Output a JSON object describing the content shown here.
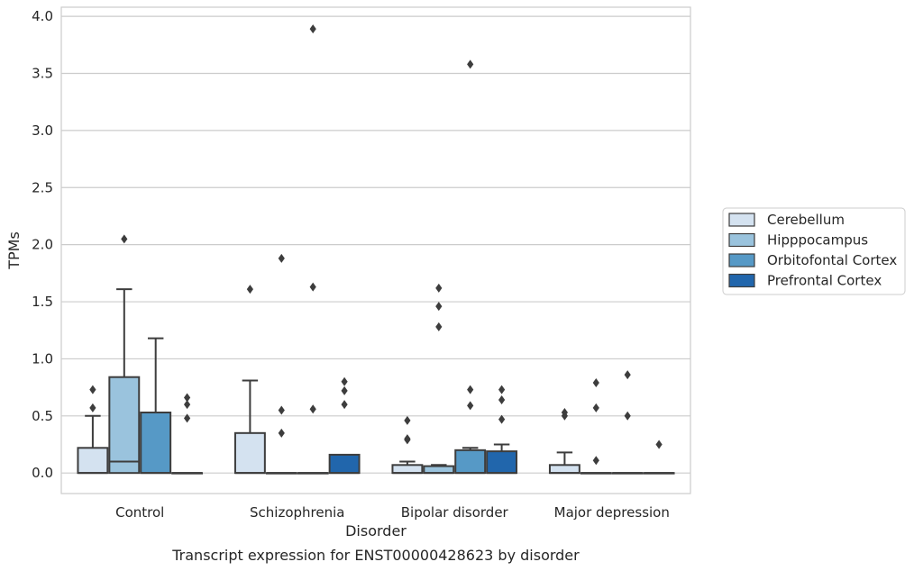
{
  "chart_data": {
    "type": "box",
    "title": "",
    "caption": "Transcript expression for ENST00000428623 by disorder",
    "xlabel": "Disorder",
    "ylabel": "TPMs",
    "ylim": [
      -0.18,
      4.08
    ],
    "yticks": [
      "0.0",
      "0.5",
      "1.0",
      "1.5",
      "2.0",
      "2.5",
      "3.0",
      "3.5",
      "4.0"
    ],
    "grid": "horizontal",
    "legend_position": "right",
    "categories": [
      "Control",
      "Schizophrenia",
      "Bipolar disorder",
      "Major depression"
    ],
    "series": [
      {
        "name": "Cerebellum",
        "color": "#d4e2f0",
        "boxes": [
          {
            "q1": 0.0,
            "median": 0.0,
            "q3": 0.22,
            "whisker_low": 0.0,
            "whisker_high": 0.5,
            "outliers": [
              0.57,
              0.73
            ]
          },
          {
            "q1": 0.0,
            "median": 0.0,
            "q3": 0.35,
            "whisker_low": 0.0,
            "whisker_high": 0.81,
            "outliers": [
              1.61
            ]
          },
          {
            "q1": 0.0,
            "median": 0.0,
            "q3": 0.07,
            "whisker_low": 0.0,
            "whisker_high": 0.1,
            "outliers": [
              0.29,
              0.3,
              0.46
            ]
          },
          {
            "q1": 0.0,
            "median": 0.0,
            "q3": 0.07,
            "whisker_low": 0.0,
            "whisker_high": 0.18,
            "outliers": [
              0.5,
              0.53
            ]
          }
        ]
      },
      {
        "name": "Hipppocampus",
        "color": "#9ac3dd",
        "boxes": [
          {
            "q1": 0.0,
            "median": 0.1,
            "q3": 0.84,
            "whisker_low": 0.0,
            "whisker_high": 1.61,
            "outliers": [
              2.05
            ]
          },
          {
            "q1": 0.0,
            "median": 0.0,
            "q3": 0.0,
            "whisker_low": 0.0,
            "whisker_high": 0.0,
            "outliers": [
              0.35,
              0.55,
              1.88
            ]
          },
          {
            "q1": 0.0,
            "median": 0.0,
            "q3": 0.06,
            "whisker_low": 0.0,
            "whisker_high": 0.07,
            "outliers": [
              1.28,
              1.46,
              1.62
            ]
          },
          {
            "q1": 0.0,
            "median": 0.0,
            "q3": 0.0,
            "whisker_low": 0.0,
            "whisker_high": 0.0,
            "outliers": [
              0.11,
              0.57,
              0.79
            ]
          }
        ]
      },
      {
        "name": "Orbitofontal Cortex",
        "color": "#5699c6",
        "boxes": [
          {
            "q1": 0.0,
            "median": 0.0,
            "q3": 0.53,
            "whisker_low": 0.0,
            "whisker_high": 1.18,
            "outliers": []
          },
          {
            "q1": 0.0,
            "median": 0.0,
            "q3": 0.0,
            "whisker_low": 0.0,
            "whisker_high": 0.0,
            "outliers": [
              0.56,
              1.63,
              3.89
            ]
          },
          {
            "q1": 0.0,
            "median": 0.0,
            "q3": 0.2,
            "whisker_low": 0.0,
            "whisker_high": 0.22,
            "outliers": [
              0.59,
              0.73,
              3.58
            ]
          },
          {
            "q1": 0.0,
            "median": 0.0,
            "q3": 0.0,
            "whisker_low": 0.0,
            "whisker_high": 0.0,
            "outliers": [
              0.5,
              0.86
            ]
          }
        ]
      },
      {
        "name": "Prefrontal Cortex",
        "color": "#2166ac",
        "boxes": [
          {
            "q1": 0.0,
            "median": 0.0,
            "q3": 0.0,
            "whisker_low": 0.0,
            "whisker_high": 0.0,
            "outliers": [
              0.48,
              0.6,
              0.66
            ]
          },
          {
            "q1": 0.0,
            "median": 0.0,
            "q3": 0.16,
            "whisker_low": 0.0,
            "whisker_high": 0.16,
            "outliers": [
              0.6,
              0.72,
              0.8
            ]
          },
          {
            "q1": 0.0,
            "median": 0.0,
            "q3": 0.19,
            "whisker_low": 0.0,
            "whisker_high": 0.25,
            "outliers": [
              0.47,
              0.64,
              0.73
            ]
          },
          {
            "q1": 0.0,
            "median": 0.0,
            "q3": 0.0,
            "whisker_low": 0.0,
            "whisker_high": 0.0,
            "outliers": [
              0.25
            ]
          }
        ]
      }
    ]
  }
}
